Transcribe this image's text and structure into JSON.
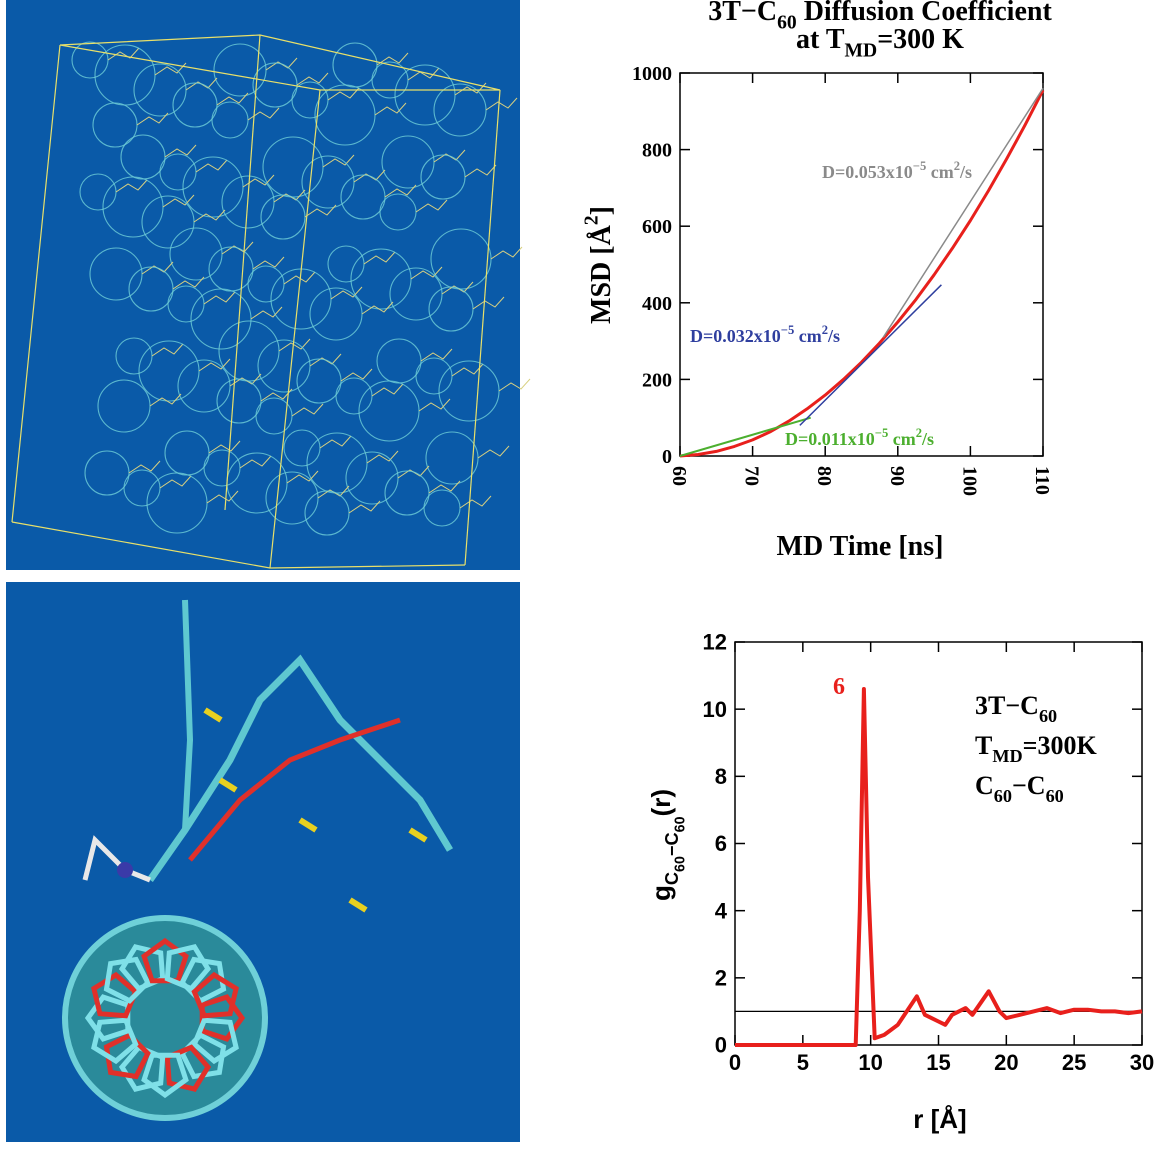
{
  "chart_data": [
    {
      "type": "line",
      "title": [
        [
          {
            "text": "3T−C"
          },
          {
            "sub": "60"
          },
          {
            "text": " Diffusion Coefficient"
          }
        ],
        [
          {
            "text": "at T"
          },
          {
            "sub": "MD"
          },
          {
            "text": "=300 K"
          }
        ]
      ],
      "x_label": [
        {
          "text": "MD Time [ns]"
        }
      ],
      "y_label": [
        {
          "text": "MSD [Å"
        },
        {
          "sup": "2"
        },
        {
          "text": "]"
        }
      ],
      "xlim": [
        60,
        110
      ],
      "xticks": [
        60,
        70,
        80,
        90,
        100,
        110
      ],
      "ylim": [
        0,
        1000
      ],
      "yticks": [
        0,
        200,
        400,
        600,
        800,
        1000
      ],
      "series": [
        {
          "color": "#e8201c",
          "x": [
            60,
            62.5,
            65,
            67.5,
            70,
            72.5,
            75,
            77.5,
            80,
            82.5,
            85,
            87.5,
            90,
            92.5,
            95,
            97.5,
            100,
            102.5,
            105,
            107.5,
            110
          ],
          "values": [
            0,
            4,
            12,
            25,
            42,
            64,
            91,
            123,
            159,
            200,
            245,
            295,
            350,
            409,
            473,
            542,
            615,
            693,
            776,
            863,
            955
          ]
        },
        {
          "color": "#4caf2f",
          "x": [
            60,
            78
          ],
          "values": [
            0,
            100
          ]
        },
        {
          "color": "#2f3f9f",
          "x": [
            76.5,
            96
          ],
          "values": [
            80,
            447
          ]
        },
        {
          "color": "#8a8a8a",
          "x": [
            88,
            110
          ],
          "values": [
            310,
            960
          ]
        }
      ],
      "annotations": [
        {
          "color": "#8a8a8a",
          "text": [
            {
              "text": "D=0.053x10"
            },
            {
              "sup": "−5"
            },
            {
              "text": " cm"
            },
            {
              "sup": "2"
            },
            {
              "text": "/s"
            }
          ]
        },
        {
          "color": "#2f3f9f",
          "text": [
            {
              "text": "D=0.032x10"
            },
            {
              "sup": "−5"
            },
            {
              "text": " cm"
            },
            {
              "sup": "2"
            },
            {
              "text": "/s"
            }
          ]
        },
        {
          "color": "#4caf2f",
          "text": [
            {
              "text": "D=0.011x10"
            },
            {
              "sup": "−5"
            },
            {
              "text": " cm"
            },
            {
              "sup": "2"
            },
            {
              "text": "/s"
            }
          ]
        }
      ]
    },
    {
      "type": "line",
      "x_label": [
        {
          "text": "r [Å]"
        }
      ],
      "y_label": [
        {
          "text": "g"
        },
        {
          "sub": "C"
        },
        {
          "subsub": "60"
        },
        {
          "sub": "−C"
        },
        {
          "subsub": "60"
        },
        {
          "text": "(r)"
        }
      ],
      "xlim": [
        0,
        30
      ],
      "xticks": [
        0,
        5,
        10,
        15,
        20,
        25,
        30
      ],
      "ylim": [
        0,
        12
      ],
      "yticks": [
        0,
        2,
        4,
        6,
        8,
        10,
        12
      ],
      "series": [
        {
          "color": "#000000",
          "x": [
            0,
            30
          ],
          "values": [
            1,
            1
          ]
        },
        {
          "color": "#e8201c",
          "x": [
            0,
            8.9,
            9.2,
            9.5,
            9.8,
            10.3,
            11,
            12,
            13.4,
            14,
            15,
            15.5,
            16,
            17,
            17.5,
            18.7,
            19.5,
            20,
            21,
            22,
            23,
            24,
            25,
            26,
            27,
            28,
            29,
            30
          ],
          "values": [
            0,
            0,
            4,
            10.6,
            5,
            0.2,
            0.3,
            0.6,
            1.45,
            0.9,
            0.7,
            0.6,
            0.9,
            1.1,
            0.9,
            1.6,
            1.0,
            0.8,
            0.9,
            1.0,
            1.1,
            0.95,
            1.05,
            1.05,
            1.0,
            1.0,
            0.95,
            1.0
          ]
        }
      ],
      "annotations": [
        {
          "color": "#e8201c",
          "text": [
            {
              "text": "6"
            }
          ]
        },
        {
          "color": "#000000",
          "text": [
            {
              "text": "3T−C"
            },
            {
              "sub": "60"
            }
          ]
        },
        {
          "color": "#000000",
          "text": [
            {
              "text": "T"
            },
            {
              "sub": "MD"
            },
            {
              "text": "=300K"
            }
          ]
        },
        {
          "color": "#000000",
          "text": [
            {
              "text": "C"
            },
            {
              "sub": "60"
            },
            {
              "text": "−C"
            },
            {
              "sub": "60"
            }
          ]
        }
      ]
    }
  ]
}
